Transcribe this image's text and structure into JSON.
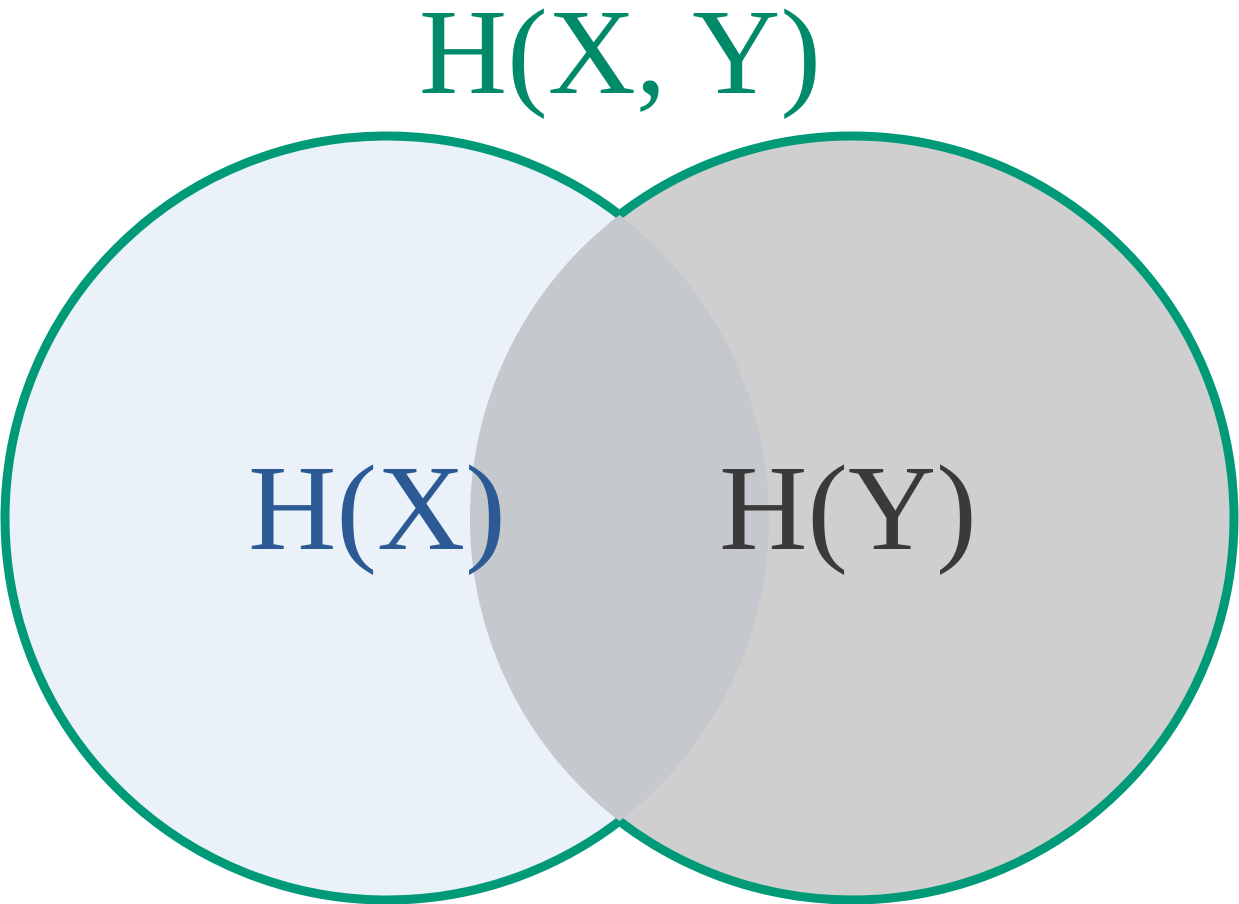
{
  "title": "H(X, Y)",
  "sets": [
    {
      "id": "x",
      "label": "H(X)"
    },
    {
      "id": "y",
      "label": "H(Y)"
    }
  ],
  "colors": {
    "outline": "#009a78",
    "title": "#008a6a",
    "x_fill": "#eaf1f9",
    "y_fill": "#cfcfcf",
    "overlap_fill": "#c5c8cc",
    "x_text": "#2b5a94",
    "y_text": "#3a3a3a"
  }
}
